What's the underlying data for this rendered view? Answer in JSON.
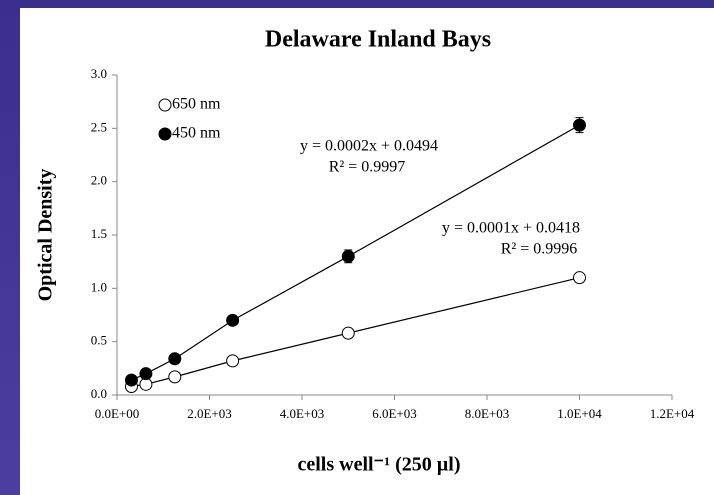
{
  "chart_data": {
    "type": "scatter",
    "title": "Delaware Inland Bays",
    "x_label": "cells well⁻¹ (250 µl)",
    "y_label": "Optical Density",
    "xlim": [
      0,
      12000
    ],
    "ylim": [
      0,
      3
    ],
    "xticks": [
      {
        "value": 0,
        "label": "0.0E+00"
      },
      {
        "value": 2000,
        "label": "2.0E+03"
      },
      {
        "value": 4000,
        "label": "4.0E+03"
      },
      {
        "value": 6000,
        "label": "6.0E+03"
      },
      {
        "value": 8000,
        "label": "8.0E+03"
      },
      {
        "value": 10000,
        "label": "1.0E+04"
      },
      {
        "value": 12000,
        "label": "1.2E+04"
      }
    ],
    "yticks": [
      {
        "value": 0,
        "label": "0.0"
      },
      0.5,
      {
        "value": 1,
        "label": "1.0"
      },
      1.5,
      {
        "value": 2,
        "label": "2.0"
      },
      2.5,
      {
        "value": 3,
        "label": "3.0"
      }
    ],
    "grid": false,
    "legend": "upper left",
    "x": [
      312.5,
      625,
      1250,
      2500,
      5000,
      10000
    ],
    "series": [
      {
        "name": "650 nm",
        "color": "#000000",
        "marker": "open",
        "values": [
          0.08,
          0.1,
          0.17,
          0.32,
          0.58,
          1.1
        ],
        "equation": "y = 0.0001x + 0.0418",
        "r2": "R² = 0.9996"
      },
      {
        "name": "450 nm",
        "color": "#000000",
        "marker": "filled",
        "values": [
          0.14,
          0.2,
          0.34,
          0.7,
          1.3,
          2.53
        ],
        "errors": [
          0.03,
          0.03,
          0.03,
          0.04,
          0.06,
          0.07
        ],
        "equation": "y = 0.0002x + 0.0494",
        "r2": "R² = 0.9997"
      }
    ]
  }
}
